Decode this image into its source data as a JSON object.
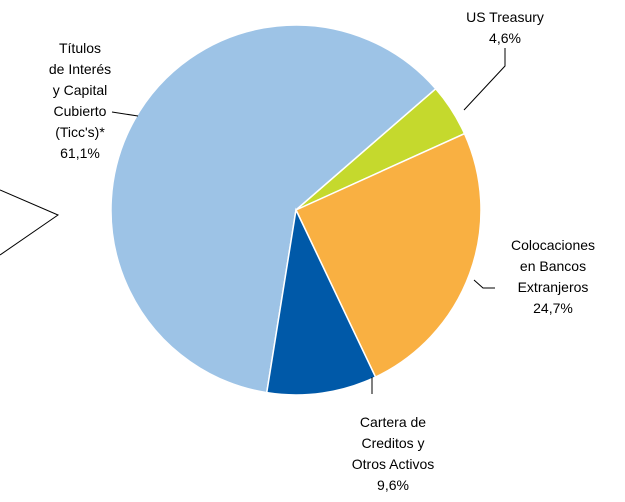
{
  "chart_data": {
    "type": "pie",
    "categories": [
      "Títulos\nde Interés\ny Capital\nCubierto\n(Ticc's)*",
      "US Treasury",
      "Colocaciones\nen Bancos\nExtranjeros",
      "Cartera de\nCreditos y\nOtros Activos"
    ],
    "values": [
      61.1,
      4.6,
      24.7,
      9.6
    ],
    "value_labels": [
      "61,1%",
      "4,6%",
      "24,7%",
      "9,6%"
    ],
    "colors": [
      "#9dc3e6",
      "#c5d92d",
      "#f9b042",
      "#0059a8"
    ]
  }
}
